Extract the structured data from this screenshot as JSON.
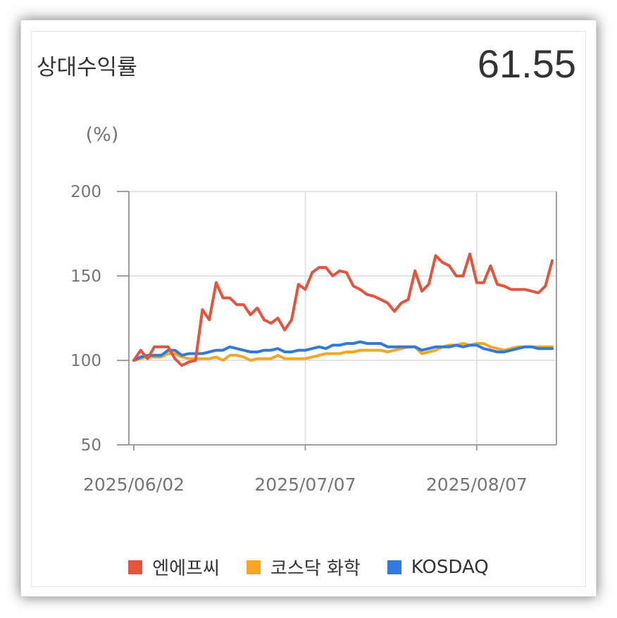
{
  "header": {
    "title": "상대수익률",
    "value": "61.55"
  },
  "chart_data": {
    "type": "line",
    "yunit": "(%)",
    "ylim": [
      50,
      200
    ],
    "yticks": [
      50,
      100,
      150,
      200
    ],
    "x_tick_labels": [
      "2025/06/02",
      "2025/07/07",
      "2025/08/07"
    ],
    "x_tick_index": [
      0,
      25,
      50
    ],
    "grid": true,
    "legend_position": "bottom",
    "series": [
      {
        "name": "엔에프씨",
        "color": "#E5533D",
        "values": [
          100,
          106,
          101,
          108,
          108,
          108,
          101,
          97,
          99,
          100,
          130,
          124,
          146,
          137,
          137,
          133,
          133,
          127,
          131,
          124,
          122,
          125,
          118,
          124,
          145,
          142,
          152,
          155,
          155,
          150,
          153,
          152,
          144,
          142,
          139,
          138,
          136,
          134,
          129,
          134,
          136,
          153,
          141,
          145,
          162,
          158,
          156,
          150,
          150,
          163,
          146,
          146,
          156,
          145,
          144,
          142,
          142,
          142,
          141,
          140,
          144,
          159
        ]
      },
      {
        "name": "코스닥 화학",
        "color": "#F6A623",
        "values": [
          100,
          101,
          102,
          102,
          102,
          104,
          104,
          102,
          101,
          101,
          101,
          101,
          102,
          100,
          103,
          103,
          102,
          100,
          101,
          101,
          101,
          103,
          101,
          101,
          101,
          101,
          102,
          103,
          104,
          104,
          104,
          105,
          105,
          106,
          106,
          106,
          106,
          105,
          106,
          107,
          108,
          108,
          104,
          105,
          106,
          108,
          109,
          109,
          110,
          109,
          110,
          110,
          108,
          107,
          106,
          107,
          108,
          108,
          108,
          108,
          108,
          108
        ]
      },
      {
        "name": "KOSDAQ",
        "color": "#2F7ADF",
        "values": [
          100,
          102,
          103,
          103,
          103,
          106,
          106,
          103,
          104,
          104,
          104,
          105,
          106,
          106,
          108,
          107,
          106,
          105,
          105,
          106,
          106,
          107,
          105,
          105,
          106,
          106,
          107,
          108,
          107,
          109,
          109,
          110,
          110,
          111,
          110,
          110,
          110,
          108,
          108,
          108,
          108,
          108,
          106,
          107,
          108,
          108,
          108,
          109,
          108,
          109,
          109,
          107,
          106,
          105,
          105,
          106,
          107,
          108,
          108,
          107,
          107,
          107
        ]
      }
    ]
  }
}
